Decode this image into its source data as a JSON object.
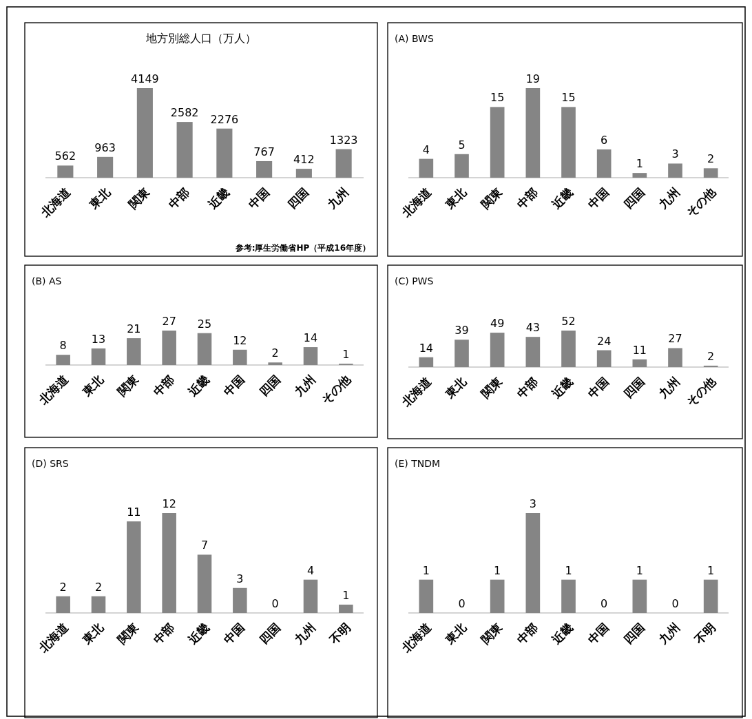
{
  "chart_data": [
    {
      "type": "bar",
      "title": "地方別総人口（万人）",
      "categories": [
        "北海道",
        "東北",
        "関東",
        "中部",
        "近畿",
        "中国",
        "四国",
        "九州"
      ],
      "values": [
        562,
        963,
        4149,
        2582,
        2276,
        767,
        412,
        1323
      ],
      "color": "#858585",
      "data_labels": true,
      "annotations": [
        "参考:厚生労働省HP（平成16年度）"
      ]
    },
    {
      "type": "bar",
      "title": "(A) BWS",
      "categories": [
        "北海道",
        "東北",
        "関東",
        "中部",
        "近畿",
        "中国",
        "四国",
        "九州",
        "その他"
      ],
      "values": [
        4,
        5,
        15,
        19,
        15,
        6,
        1,
        3,
        2
      ],
      "color": "#858585",
      "data_labels": true
    },
    {
      "type": "bar",
      "title": "(B) AS",
      "categories": [
        "北海道",
        "東北",
        "関東",
        "中部",
        "近畿",
        "中国",
        "四国",
        "九州",
        "その他"
      ],
      "values": [
        8,
        13,
        21,
        27,
        25,
        12,
        2,
        14,
        1
      ],
      "color": "#858585",
      "data_labels": true
    },
    {
      "type": "bar",
      "title": "(C) PWS",
      "categories": [
        "北海道",
        "東北",
        "関東",
        "中部",
        "近畿",
        "中国",
        "四国",
        "九州",
        "その他"
      ],
      "values": [
        14,
        39,
        49,
        43,
        52,
        24,
        11,
        27,
        2
      ],
      "color": "#858585",
      "data_labels": true
    },
    {
      "type": "bar",
      "title": "(D) SRS",
      "categories": [
        "北海道",
        "東北",
        "関東",
        "中部",
        "近畿",
        "中国",
        "四国",
        "九州",
        "不明"
      ],
      "values": [
        2,
        2,
        11,
        12,
        7,
        3,
        0,
        4,
        1
      ],
      "color": "#858585",
      "data_labels": true
    },
    {
      "type": "bar",
      "title": "(E) TNDM",
      "categories": [
        "北海道",
        "東北",
        "関東",
        "中部",
        "近畿",
        "中国",
        "四国",
        "九州",
        "不明"
      ],
      "values": [
        1,
        0,
        1,
        3,
        1,
        0,
        1,
        0,
        1
      ],
      "color": "#858585",
      "data_labels": true
    }
  ]
}
